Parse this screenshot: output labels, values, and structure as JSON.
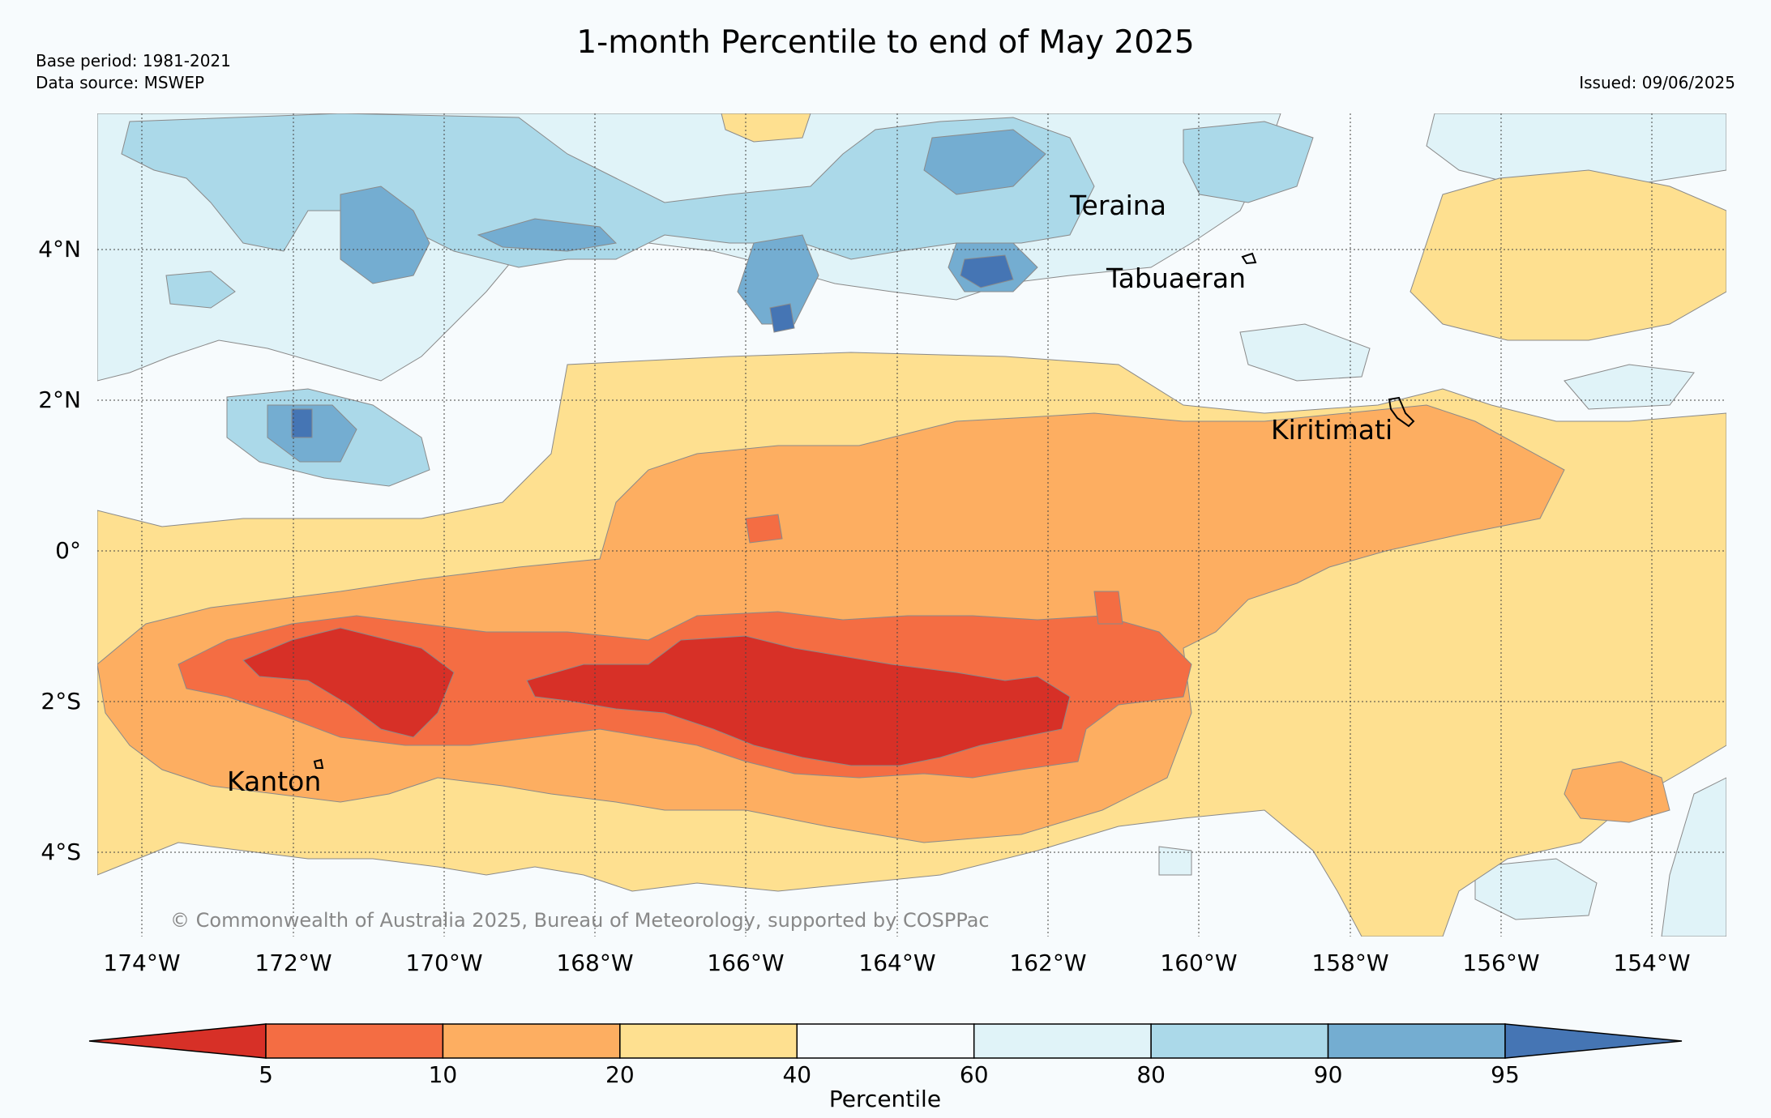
{
  "header": {
    "title": "1-month Percentile to end of May 2025",
    "base_period": "Base period: 1981-2021",
    "data_source": "Data source: MSWEP",
    "issued": "Issued: 09/06/2025"
  },
  "map": {
    "lon_labels": [
      "174°W",
      "172°W",
      "170°W",
      "168°W",
      "166°W",
      "164°W",
      "162°W",
      "160°W",
      "158°W",
      "156°W",
      "154°W"
    ],
    "lat_labels": [
      "4°N",
      "2°N",
      "0°",
      "2°S",
      "4°S"
    ],
    "places": [
      "Teraina",
      "Tabuaeran",
      "Kiritimati",
      "Kanton"
    ],
    "copyright": "© Commonwealth of Australia 2025, Bureau of Meteorology, supported by COSPPac",
    "region": {
      "lon_range": [
        "174.6°W",
        "153.0°W"
      ],
      "lat_range": [
        "5.0°S",
        "5.8°N"
      ]
    }
  },
  "colorbar": {
    "label": "Percentile",
    "tick_labels": [
      "5",
      "10",
      "20",
      "40",
      "60",
      "80",
      "90",
      "95"
    ],
    "bins": [
      {
        "range": "<5",
        "color": "#d73027"
      },
      {
        "range": "5-10",
        "color": "#f46d43"
      },
      {
        "range": "10-20",
        "color": "#fdae61"
      },
      {
        "range": "20-40",
        "color": "#fee090"
      },
      {
        "range": "40-60",
        "color": "#f7fbfd"
      },
      {
        "range": "60-80",
        "color": "#e0f3f8"
      },
      {
        "range": "80-90",
        "color": "#abd9e9"
      },
      {
        "range": "90-95",
        "color": "#74add1"
      },
      {
        "range": ">95",
        "color": "#4575b4"
      }
    ]
  }
}
